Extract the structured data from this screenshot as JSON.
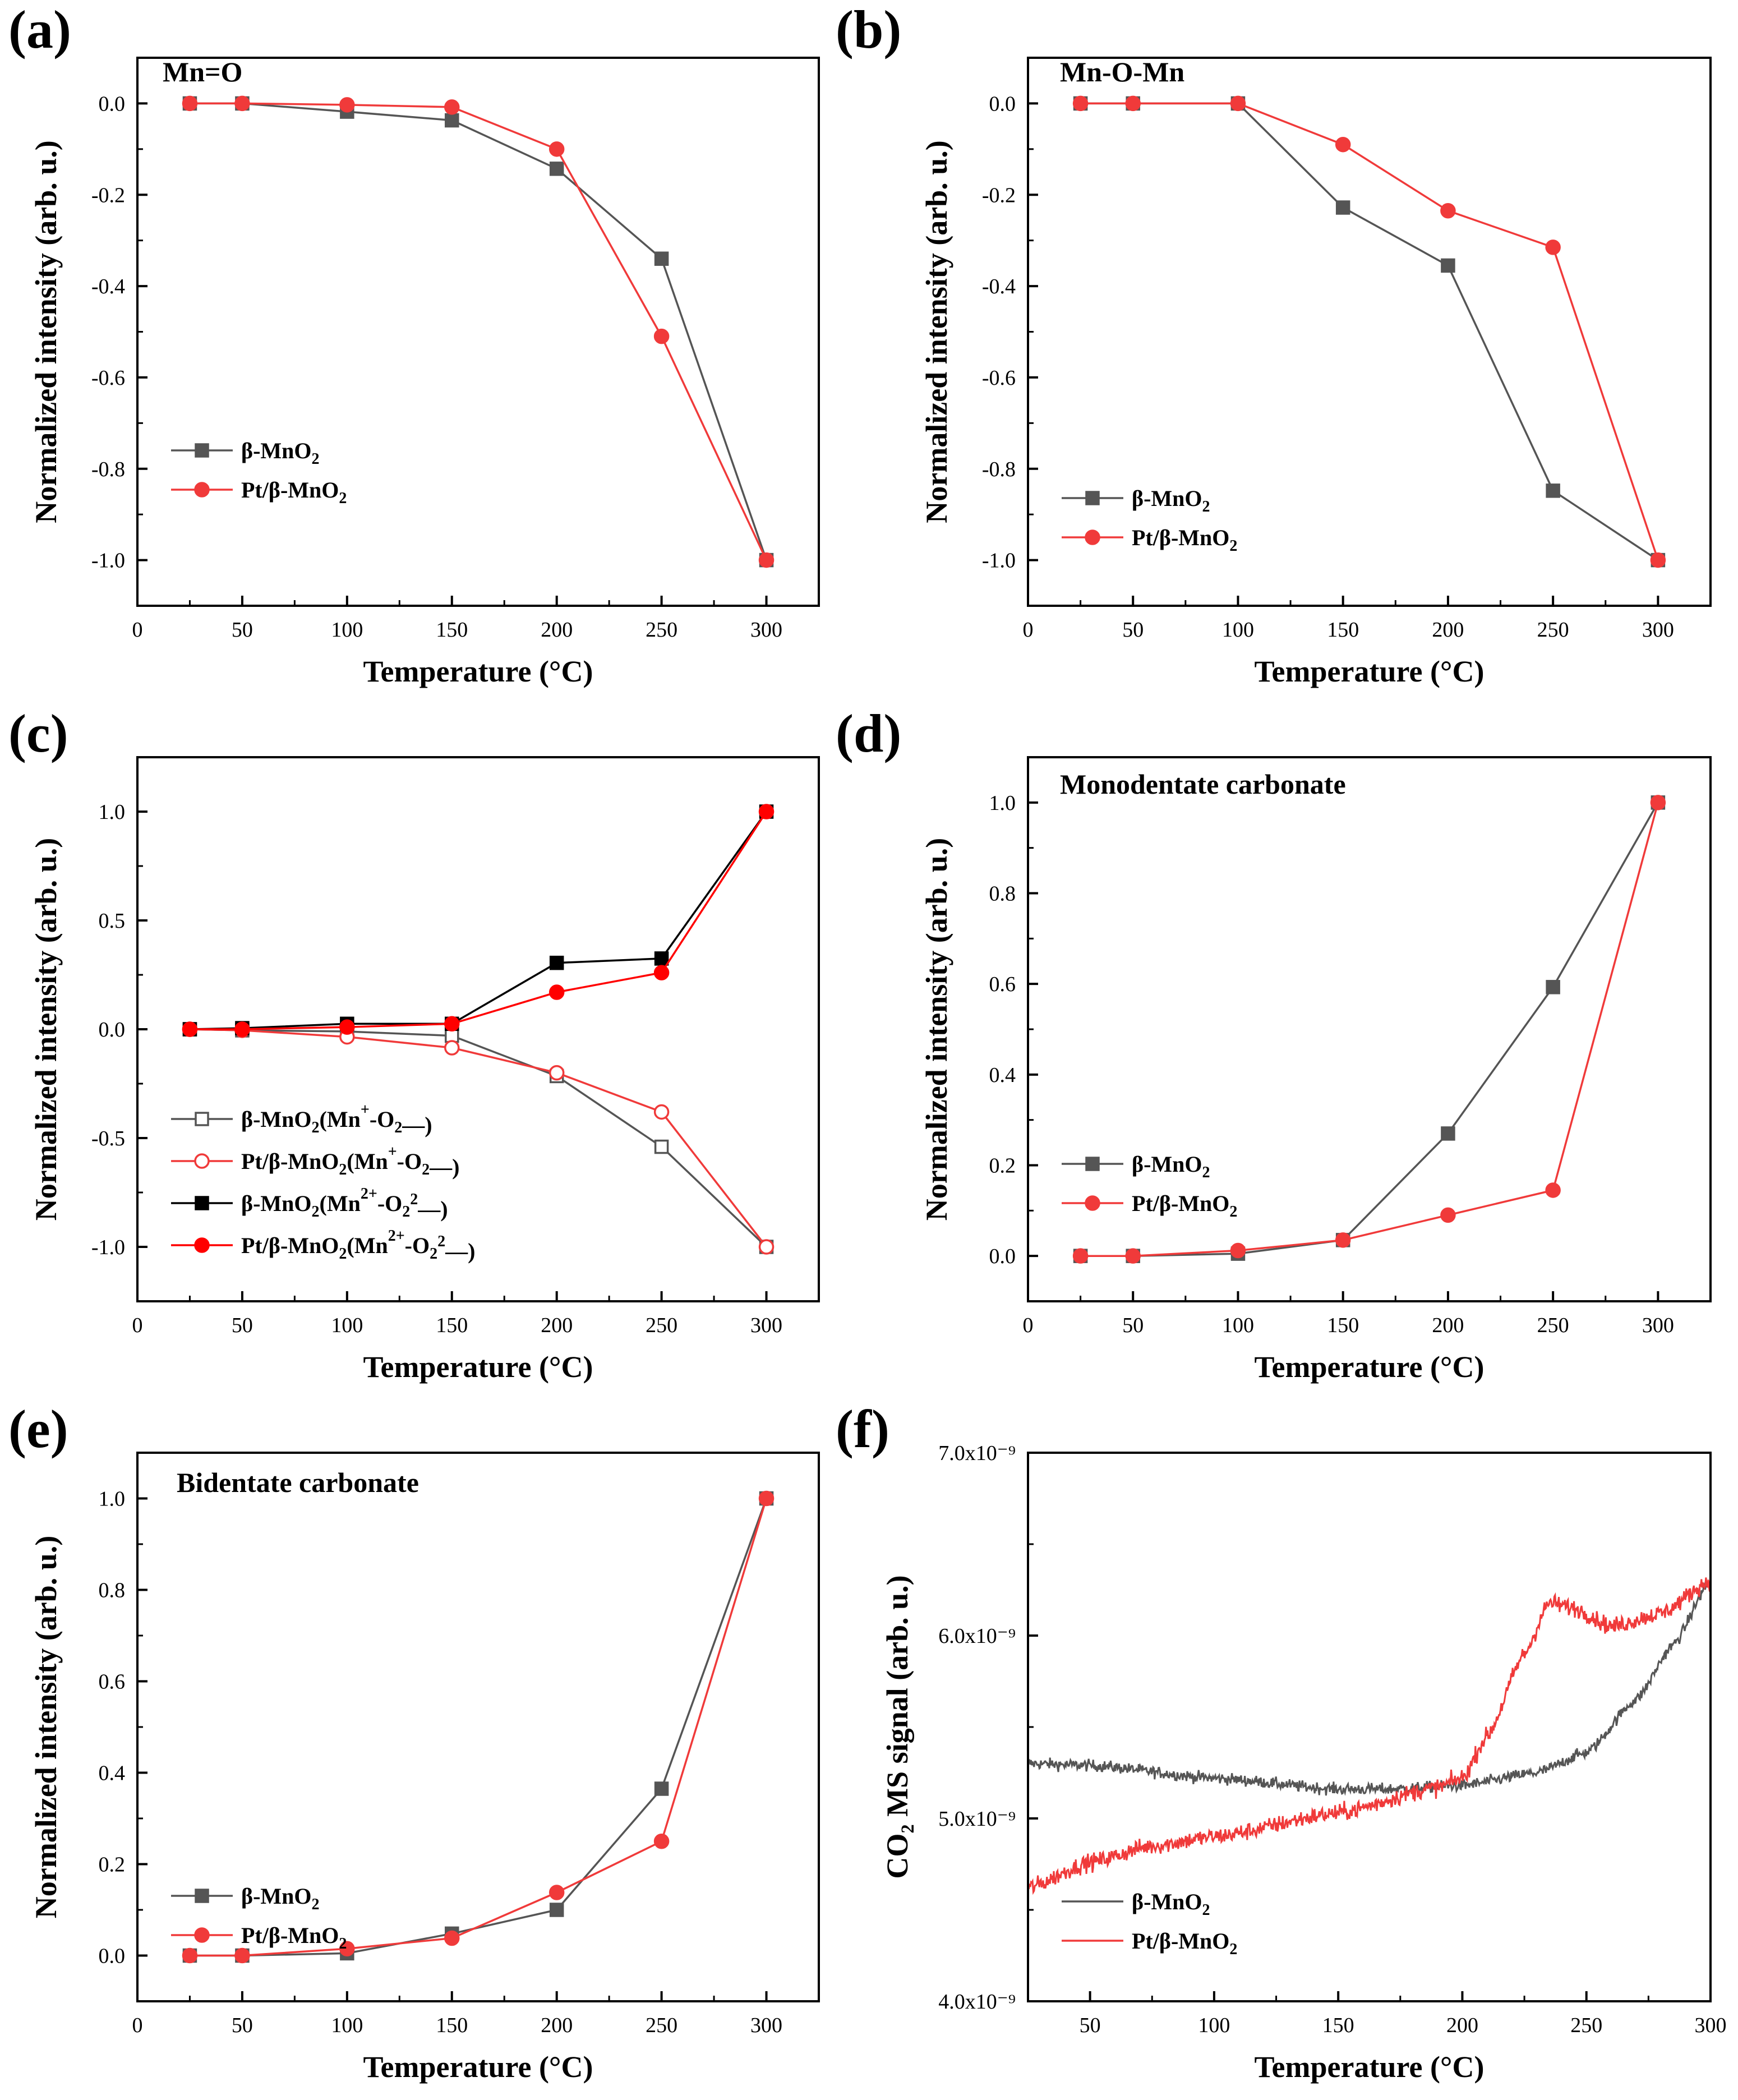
{
  "colors": {
    "beta": "#555555",
    "pt": "#f03a3a",
    "beta_c2": "#000000",
    "pt_c2": "#ff0000",
    "axis": "#000000"
  },
  "chart_data": [
    {
      "id": "a",
      "panel_label": "(a)",
      "type": "line",
      "annotation": "Mn=O",
      "xlabel": "Temperature (°C)",
      "ylabel": "Normalized intensity (arb. u.)",
      "xlim": [
        0,
        325
      ],
      "ylim": [
        -1.1,
        0.1
      ],
      "xticks": [
        0,
        50,
        100,
        150,
        200,
        250,
        300
      ],
      "xticklabels": [
        "0",
        "50",
        "100",
        "150",
        "200",
        "250",
        "300"
      ],
      "yticks": [
        0.0,
        -0.2,
        -0.4,
        -0.6,
        -0.8,
        -1.0
      ],
      "yticklabels": [
        "0.0",
        "-0.2",
        "-0.4",
        "-0.6",
        "-0.8",
        "-1.0"
      ],
      "legend_position": "bottom-left",
      "series": [
        {
          "name_parts": [
            "β-MnO",
            "2",
            ""
          ],
          "color_key": "beta",
          "marker": "square",
          "filled": true,
          "x": [
            25,
            50,
            100,
            150,
            200,
            250,
            300
          ],
          "y": [
            0.0,
            0.0,
            -0.018,
            -0.037,
            -0.143,
            -0.34,
            -1.0
          ]
        },
        {
          "name_parts": [
            "Pt/β-MnO",
            "2",
            ""
          ],
          "color_key": "pt",
          "marker": "circle",
          "filled": true,
          "x": [
            25,
            50,
            100,
            150,
            200,
            250,
            300
          ],
          "y": [
            0.0,
            0.0,
            -0.003,
            -0.008,
            -0.1,
            -0.51,
            -1.0
          ]
        }
      ]
    },
    {
      "id": "b",
      "panel_label": "(b)",
      "type": "line",
      "annotation": "Mn-O-Mn",
      "xlabel": "Temperature (°C)",
      "ylabel": "Normalized intensity (arb. u.)",
      "xlim": [
        0,
        325
      ],
      "ylim": [
        -1.1,
        0.1
      ],
      "xticks": [
        0,
        50,
        100,
        150,
        200,
        250,
        300
      ],
      "xticklabels": [
        "0",
        "50",
        "100",
        "150",
        "200",
        "250",
        "300"
      ],
      "yticks": [
        0.0,
        -0.2,
        -0.4,
        -0.6,
        -0.8,
        -1.0
      ],
      "yticklabels": [
        "0.0",
        "-0.2",
        "-0.4",
        "-0.6",
        "-0.8",
        "-1.0"
      ],
      "legend_position": "bottom-left",
      "series": [
        {
          "name_parts": [
            "β-MnO",
            "2",
            ""
          ],
          "color_key": "beta",
          "marker": "square",
          "filled": true,
          "x": [
            25,
            50,
            100,
            150,
            200,
            250,
            300
          ],
          "y": [
            0.0,
            0.0,
            0.0,
            -0.228,
            -0.355,
            -0.848,
            -1.0
          ]
        },
        {
          "name_parts": [
            "Pt/β-MnO",
            "2",
            ""
          ],
          "color_key": "pt",
          "marker": "circle",
          "filled": true,
          "x": [
            25,
            50,
            100,
            150,
            200,
            250,
            300
          ],
          "y": [
            0.0,
            0.0,
            0.0,
            -0.09,
            -0.235,
            -0.315,
            -1.0
          ]
        }
      ]
    },
    {
      "id": "c",
      "panel_label": "(c)",
      "type": "line",
      "annotation": "",
      "xlabel": "Temperature (°C)",
      "ylabel": "Normalized intensity (arb. u.)",
      "xlim": [
        0,
        325
      ],
      "ylim": [
        -1.25,
        1.25
      ],
      "xticks": [
        0,
        50,
        100,
        150,
        200,
        250,
        300
      ],
      "xticklabels": [
        "0",
        "50",
        "100",
        "150",
        "200",
        "250",
        "300"
      ],
      "yticks": [
        1.0,
        0.5,
        0.0,
        -0.5,
        -1.0
      ],
      "yticklabels": [
        "1.0",
        "0.5",
        "0.0",
        "-0.5",
        "-1.0"
      ],
      "legend_position": "bottom-left",
      "series": [
        {
          "name_parts": [
            "β-MnO",
            "2",
            "(Mn",
            "+",
            "-O",
            "2",
            "—)"
          ],
          "color_key": "beta",
          "marker": "square",
          "filled": false,
          "x": [
            25,
            50,
            100,
            150,
            200,
            250,
            300
          ],
          "y": [
            0.0,
            -0.005,
            -0.01,
            -0.03,
            -0.215,
            -0.54,
            -1.0
          ]
        },
        {
          "name_parts": [
            "Pt/β-MnO",
            "2",
            "(Mn",
            "+",
            "-O",
            "2",
            "—)"
          ],
          "color_key": "pt",
          "marker": "circle",
          "filled": false,
          "x": [
            25,
            50,
            100,
            150,
            200,
            250,
            300
          ],
          "y": [
            0.0,
            -0.005,
            -0.035,
            -0.085,
            -0.2,
            -0.38,
            -1.0
          ]
        },
        {
          "name_parts": [
            "β-MnO",
            "2",
            "(Mn",
            "2+",
            "-O",
            "2",
            "",
            "2",
            "—)"
          ],
          "color_key": "beta_c2",
          "marker": "square",
          "filled": true,
          "x": [
            25,
            50,
            100,
            150,
            200,
            250,
            300
          ],
          "y": [
            0.0,
            0.005,
            0.025,
            0.025,
            0.305,
            0.325,
            1.0
          ]
        },
        {
          "name_parts": [
            "Pt/β-MnO",
            "2",
            "(Mn",
            "2+",
            "-O",
            "2",
            "",
            "2",
            "—)"
          ],
          "color_key": "pt_c2",
          "marker": "circle",
          "filled": true,
          "x": [
            25,
            50,
            100,
            150,
            200,
            250,
            300
          ],
          "y": [
            0.0,
            0.0,
            0.01,
            0.025,
            0.17,
            0.26,
            1.0
          ]
        }
      ]
    },
    {
      "id": "d",
      "panel_label": "(d)",
      "type": "line",
      "annotation": "Monodentate carbonate",
      "xlabel": "Temperature (°C)",
      "ylabel": "Normalized intensity (arb. u.)",
      "xlim": [
        0,
        325
      ],
      "ylim": [
        -0.1,
        1.1
      ],
      "xticks": [
        0,
        50,
        100,
        150,
        200,
        250,
        300
      ],
      "xticklabels": [
        "0",
        "50",
        "100",
        "150",
        "200",
        "250",
        "300"
      ],
      "yticks": [
        0.0,
        0.2,
        0.4,
        0.6,
        0.8,
        1.0
      ],
      "yticklabels": [
        "0.0",
        "0.2",
        "0.4",
        "0.6",
        "0.8",
        "1.0"
      ],
      "legend_position": "bottom-left",
      "series": [
        {
          "name_parts": [
            "β-MnO",
            "2",
            ""
          ],
          "color_key": "beta",
          "marker": "square",
          "filled": true,
          "x": [
            25,
            50,
            100,
            150,
            200,
            250,
            300
          ],
          "y": [
            0.0,
            0.0,
            0.005,
            0.035,
            0.27,
            0.593,
            1.0
          ]
        },
        {
          "name_parts": [
            "Pt/β-MnO",
            "2",
            ""
          ],
          "color_key": "pt",
          "marker": "circle",
          "filled": true,
          "x": [
            25,
            50,
            100,
            150,
            200,
            250,
            300
          ],
          "y": [
            0.0,
            0.0,
            0.012,
            0.035,
            0.09,
            0.145,
            1.0
          ]
        }
      ]
    },
    {
      "id": "e",
      "panel_label": "(e)",
      "type": "line",
      "annotation": "Bidentate carbonate",
      "xlabel": "Temperature (°C)",
      "ylabel": "Normalized intensity (arb. u.)",
      "xlim": [
        0,
        325
      ],
      "ylim": [
        -0.1,
        1.1
      ],
      "xticks": [
        0,
        50,
        100,
        150,
        200,
        250,
        300
      ],
      "xticklabels": [
        "0",
        "50",
        "100",
        "150",
        "200",
        "250",
        "300"
      ],
      "yticks": [
        0.0,
        0.2,
        0.4,
        0.6,
        0.8,
        1.0
      ],
      "yticklabels": [
        "0.0",
        "0.2",
        "0.4",
        "0.6",
        "0.8",
        "1.0"
      ],
      "legend_position": "bottom-left",
      "series": [
        {
          "name_parts": [
            "β-MnO",
            "2",
            ""
          ],
          "color_key": "beta",
          "marker": "square",
          "filled": true,
          "x": [
            25,
            50,
            100,
            150,
            200,
            250,
            300
          ],
          "y": [
            0.0,
            0.0,
            0.005,
            0.048,
            0.1,
            0.365,
            1.0
          ]
        },
        {
          "name_parts": [
            "Pt/β-MnO",
            "2",
            ""
          ],
          "color_key": "pt",
          "marker": "circle",
          "filled": true,
          "x": [
            25,
            50,
            100,
            150,
            200,
            250,
            300
          ],
          "y": [
            0.0,
            0.0,
            0.015,
            0.038,
            0.138,
            0.25,
            1.0
          ]
        }
      ]
    },
    {
      "id": "f",
      "panel_label": "(f)",
      "type": "line",
      "annotation": "",
      "xlabel": "Temperature (°C)",
      "ylabel": "CO₂ MS signal (arb. u.)",
      "xlim": [
        25,
        300
      ],
      "ylim": [
        4e-09,
        7e-09
      ],
      "xticks": [
        50,
        100,
        150,
        200,
        250,
        300
      ],
      "xticklabels": [
        "50",
        "100",
        "150",
        "200",
        "250",
        "300"
      ],
      "yticks": [
        4e-09,
        5e-09,
        6e-09,
        7e-09
      ],
      "yticklabels": [
        "4.0x10⁻⁹",
        "5.0x10⁻⁹",
        "6.0x10⁻⁹",
        "7.0x10⁻⁹"
      ],
      "legend_position": "bottom-left",
      "series": [
        {
          "name_parts": [
            "β-MnO",
            "2",
            ""
          ],
          "color_key": "beta",
          "marker": "none",
          "filled": false,
          "noise": 3e-11,
          "x": [
            25,
            50,
            100,
            150,
            170,
            200,
            230,
            250,
            270,
            285,
            300
          ],
          "y": [
            5.3e-09,
            5.29e-09,
            5.22e-09,
            5.16e-09,
            5.16e-09,
            5.18e-09,
            5.25e-09,
            5.36e-09,
            5.65e-09,
            5.95e-09,
            6.3e-09
          ]
        },
        {
          "name_parts": [
            "Pt/β-MnO",
            "2",
            ""
          ],
          "color_key": "pt",
          "marker": "none",
          "filled": false,
          "noise": 4.5e-11,
          "x": [
            25,
            50,
            75,
            100,
            150,
            190,
            200,
            210,
            225,
            235,
            245,
            260,
            280,
            300
          ],
          "y": [
            4.62e-09,
            4.76e-09,
            4.85e-09,
            4.9e-09,
            5.03e-09,
            5.17e-09,
            5.22e-09,
            5.45e-09,
            5.9e-09,
            6.18e-09,
            6.15e-09,
            6.05e-09,
            6.12e-09,
            6.3e-09
          ]
        }
      ]
    }
  ]
}
